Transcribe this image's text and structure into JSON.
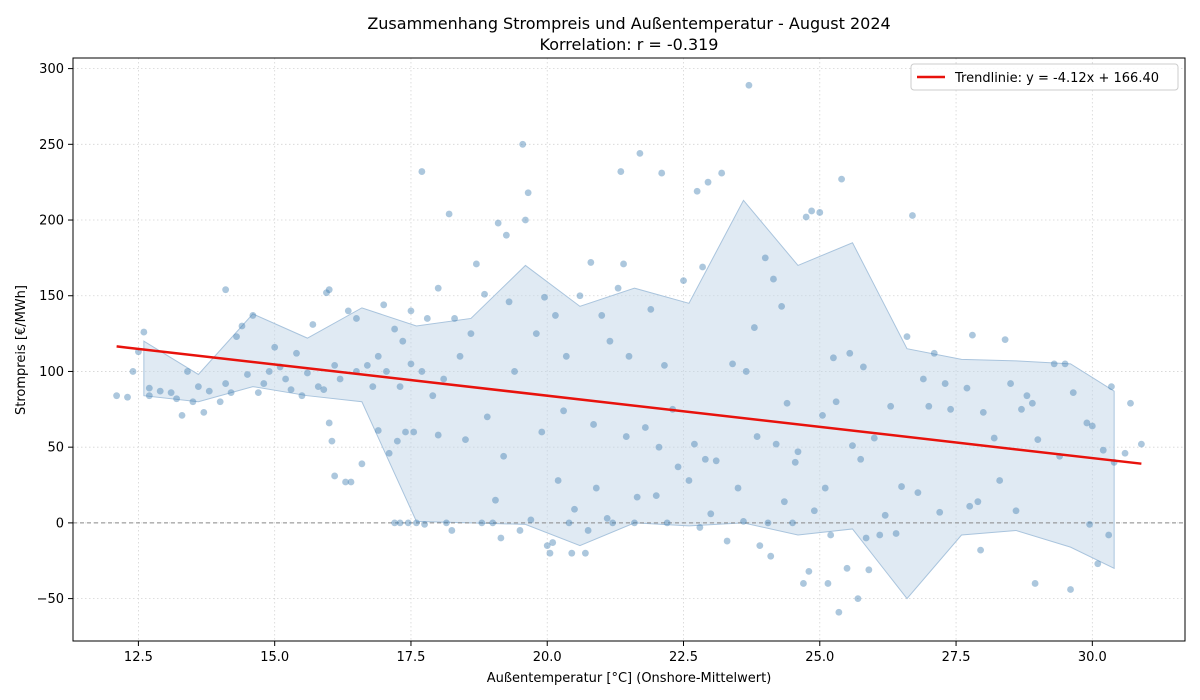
{
  "chart_data": {
    "type": "scatter",
    "title": "Zusammenhang Strompreis und Außentemperatur - August 2024",
    "subtitle": "Korrelation: r = -0.319",
    "xlabel": "Außentemperatur [°C] (Onshore-Mittelwert)",
    "ylabel": "Strompreis [€/MWh]",
    "xlim": [
      11.3,
      31.7
    ],
    "ylim": [
      -78,
      307
    ],
    "x_ticks": [
      12.5,
      15.0,
      17.5,
      20.0,
      22.5,
      25.0,
      27.5,
      30.0
    ],
    "x_tick_labels": [
      "12.5",
      "15.0",
      "17.5",
      "20.0",
      "22.5",
      "25.0",
      "27.5",
      "30.0"
    ],
    "y_ticks": [
      -50,
      0,
      50,
      100,
      150,
      200,
      250,
      300
    ],
    "y_tick_labels": [
      "−50",
      "0",
      "50",
      "100",
      "150",
      "200",
      "250",
      "300"
    ],
    "grid": true,
    "zero_line": 0,
    "legend_position": "top-right",
    "colors": {
      "points": "#4682b4",
      "trend": "#e8120c",
      "band": "#c2d6e8"
    },
    "trendline": {
      "label": "Trendlinie: y = -4.12x + 166.40",
      "slope": -4.12,
      "intercept": 166.4,
      "x_range": [
        12.1,
        30.9
      ]
    },
    "band": {
      "x": [
        12.6,
        13.6,
        14.6,
        15.6,
        16.6,
        17.6,
        18.6,
        19.6,
        20.6,
        21.6,
        22.6,
        23.6,
        24.6,
        25.6,
        26.6,
        27.6,
        28.6,
        29.6,
        30.4
      ],
      "upper": [
        120,
        98,
        138,
        122,
        142,
        130,
        135,
        170,
        143,
        155,
        145,
        213,
        170,
        185,
        115,
        108,
        107,
        105,
        87
      ],
      "lower": [
        84,
        80,
        90,
        84,
        80,
        1,
        0,
        -1,
        -15,
        0,
        -2,
        0,
        -8,
        -4,
        -50,
        -8,
        -5,
        -16,
        -30
      ]
    },
    "points": [
      [
        12.1,
        84
      ],
      [
        12.3,
        83
      ],
      [
        12.4,
        100
      ],
      [
        12.5,
        113
      ],
      [
        12.6,
        126
      ],
      [
        12.7,
        89
      ],
      [
        12.7,
        84
      ],
      [
        12.9,
        87
      ],
      [
        13.1,
        86
      ],
      [
        13.2,
        82
      ],
      [
        13.3,
        71
      ],
      [
        13.4,
        100
      ],
      [
        13.5,
        80
      ],
      [
        13.6,
        90
      ],
      [
        13.7,
        73
      ],
      [
        13.8,
        87
      ],
      [
        14.0,
        80
      ],
      [
        14.1,
        154
      ],
      [
        14.1,
        92
      ],
      [
        14.2,
        86
      ],
      [
        14.3,
        123
      ],
      [
        14.4,
        130
      ],
      [
        14.5,
        98
      ],
      [
        14.6,
        137
      ],
      [
        14.7,
        86
      ],
      [
        14.8,
        92
      ],
      [
        14.9,
        100
      ],
      [
        15.0,
        116
      ],
      [
        15.1,
        103
      ],
      [
        15.2,
        95
      ],
      [
        15.3,
        88
      ],
      [
        15.4,
        112
      ],
      [
        15.5,
        84
      ],
      [
        15.6,
        99
      ],
      [
        15.7,
        131
      ],
      [
        15.8,
        90
      ],
      [
        15.9,
        88
      ],
      [
        15.95,
        152
      ],
      [
        16.0,
        154
      ],
      [
        16.0,
        66
      ],
      [
        16.05,
        54
      ],
      [
        16.1,
        31
      ],
      [
        16.1,
        104
      ],
      [
        16.2,
        95
      ],
      [
        16.3,
        27
      ],
      [
        16.35,
        140
      ],
      [
        16.4,
        27
      ],
      [
        16.5,
        135
      ],
      [
        16.5,
        100
      ],
      [
        16.6,
        39
      ],
      [
        16.7,
        104
      ],
      [
        16.8,
        90
      ],
      [
        16.9,
        110
      ],
      [
        16.9,
        61
      ],
      [
        17.0,
        144
      ],
      [
        17.05,
        100
      ],
      [
        17.1,
        46
      ],
      [
        17.2,
        128
      ],
      [
        17.2,
        0
      ],
      [
        17.25,
        54
      ],
      [
        17.3,
        90
      ],
      [
        17.3,
        0
      ],
      [
        17.35,
        120
      ],
      [
        17.4,
        60
      ],
      [
        17.45,
        0
      ],
      [
        17.5,
        140
      ],
      [
        17.5,
        105
      ],
      [
        17.55,
        60
      ],
      [
        17.6,
        0
      ],
      [
        17.7,
        232
      ],
      [
        17.7,
        100
      ],
      [
        17.75,
        -1
      ],
      [
        17.8,
        135
      ],
      [
        17.9,
        84
      ],
      [
        18.0,
        155
      ],
      [
        18.0,
        58
      ],
      [
        18.1,
        95
      ],
      [
        18.15,
        0
      ],
      [
        18.2,
        204
      ],
      [
        18.25,
        -5
      ],
      [
        18.3,
        135
      ],
      [
        18.4,
        110
      ],
      [
        18.5,
        55
      ],
      [
        18.6,
        125
      ],
      [
        18.7,
        171
      ],
      [
        18.8,
        0
      ],
      [
        18.85,
        151
      ],
      [
        18.9,
        70
      ],
      [
        19.0,
        0
      ],
      [
        19.05,
        15
      ],
      [
        19.1,
        198
      ],
      [
        19.15,
        -10
      ],
      [
        19.2,
        44
      ],
      [
        19.25,
        190
      ],
      [
        19.3,
        146
      ],
      [
        19.4,
        100
      ],
      [
        19.5,
        -5
      ],
      [
        19.55,
        250
      ],
      [
        19.6,
        200
      ],
      [
        19.65,
        218
      ],
      [
        19.7,
        2
      ],
      [
        19.8,
        125
      ],
      [
        19.9,
        60
      ],
      [
        19.95,
        149
      ],
      [
        20.0,
        -15
      ],
      [
        20.05,
        -20
      ],
      [
        20.1,
        -13
      ],
      [
        20.15,
        137
      ],
      [
        20.2,
        28
      ],
      [
        20.3,
        74
      ],
      [
        20.35,
        110
      ],
      [
        20.4,
        0
      ],
      [
        20.45,
        -20
      ],
      [
        20.5,
        9
      ],
      [
        20.6,
        150
      ],
      [
        20.7,
        -20
      ],
      [
        20.75,
        -5
      ],
      [
        20.8,
        172
      ],
      [
        20.85,
        65
      ],
      [
        20.9,
        23
      ],
      [
        21.0,
        137
      ],
      [
        21.1,
        3
      ],
      [
        21.15,
        120
      ],
      [
        21.2,
        0
      ],
      [
        21.3,
        155
      ],
      [
        21.35,
        232
      ],
      [
        21.4,
        171
      ],
      [
        21.45,
        57
      ],
      [
        21.5,
        110
      ],
      [
        21.6,
        0
      ],
      [
        21.65,
        17
      ],
      [
        21.7,
        244
      ],
      [
        21.8,
        63
      ],
      [
        21.9,
        141
      ],
      [
        22.0,
        18
      ],
      [
        22.05,
        50
      ],
      [
        22.1,
        231
      ],
      [
        22.15,
        104
      ],
      [
        22.2,
        0
      ],
      [
        22.3,
        75
      ],
      [
        22.4,
        37
      ],
      [
        22.5,
        160
      ],
      [
        22.6,
        28
      ],
      [
        22.7,
        52
      ],
      [
        22.75,
        219
      ],
      [
        22.8,
        -3
      ],
      [
        22.85,
        169
      ],
      [
        22.9,
        42
      ],
      [
        22.95,
        225
      ],
      [
        23.0,
        6
      ],
      [
        23.1,
        41
      ],
      [
        23.2,
        231
      ],
      [
        23.3,
        -12
      ],
      [
        23.4,
        105
      ],
      [
        23.5,
        23
      ],
      [
        23.6,
        1
      ],
      [
        23.65,
        100
      ],
      [
        23.7,
        289
      ],
      [
        23.8,
        129
      ],
      [
        23.85,
        57
      ],
      [
        23.9,
        -15
      ],
      [
        24.0,
        175
      ],
      [
        24.05,
        0
      ],
      [
        24.1,
        -22
      ],
      [
        24.15,
        161
      ],
      [
        24.2,
        52
      ],
      [
        24.3,
        143
      ],
      [
        24.35,
        14
      ],
      [
        24.4,
        79
      ],
      [
        24.5,
        0
      ],
      [
        24.55,
        40
      ],
      [
        24.6,
        47
      ],
      [
        24.7,
        -40
      ],
      [
        24.75,
        202
      ],
      [
        24.8,
        -32
      ],
      [
        24.85,
        206
      ],
      [
        24.9,
        8
      ],
      [
        25.0,
        205
      ],
      [
        25.05,
        71
      ],
      [
        25.1,
        23
      ],
      [
        25.15,
        -40
      ],
      [
        25.2,
        -8
      ],
      [
        25.25,
        109
      ],
      [
        25.3,
        80
      ],
      [
        25.35,
        -59
      ],
      [
        25.4,
        227
      ],
      [
        25.5,
        -30
      ],
      [
        25.55,
        112
      ],
      [
        25.6,
        51
      ],
      [
        25.7,
        -50
      ],
      [
        25.75,
        42
      ],
      [
        25.8,
        103
      ],
      [
        25.85,
        -10
      ],
      [
        25.9,
        -31
      ],
      [
        26.0,
        56
      ],
      [
        26.1,
        -8
      ],
      [
        26.2,
        5
      ],
      [
        26.3,
        77
      ],
      [
        26.4,
        -7
      ],
      [
        26.5,
        24
      ],
      [
        26.6,
        123
      ],
      [
        26.7,
        203
      ],
      [
        26.8,
        20
      ],
      [
        26.9,
        95
      ],
      [
        27.0,
        77
      ],
      [
        27.1,
        112
      ],
      [
        27.2,
        7
      ],
      [
        27.3,
        92
      ],
      [
        27.4,
        75
      ],
      [
        27.7,
        89
      ],
      [
        27.75,
        11
      ],
      [
        27.8,
        124
      ],
      [
        27.9,
        14
      ],
      [
        27.95,
        -18
      ],
      [
        28.0,
        73
      ],
      [
        28.2,
        56
      ],
      [
        28.3,
        28
      ],
      [
        28.4,
        121
      ],
      [
        28.5,
        92
      ],
      [
        28.6,
        8
      ],
      [
        28.7,
        75
      ],
      [
        28.8,
        84
      ],
      [
        28.9,
        79
      ],
      [
        28.95,
        -40
      ],
      [
        29.0,
        55
      ],
      [
        29.3,
        105
      ],
      [
        29.4,
        44
      ],
      [
        29.5,
        105
      ],
      [
        29.6,
        -44
      ],
      [
        29.65,
        86
      ],
      [
        29.9,
        66
      ],
      [
        29.95,
        -1
      ],
      [
        30.0,
        64
      ],
      [
        30.1,
        -27
      ],
      [
        30.2,
        48
      ],
      [
        30.3,
        -8
      ],
      [
        30.35,
        90
      ],
      [
        30.4,
        40
      ],
      [
        30.6,
        46
      ],
      [
        30.7,
        79
      ],
      [
        30.9,
        52
      ]
    ]
  }
}
